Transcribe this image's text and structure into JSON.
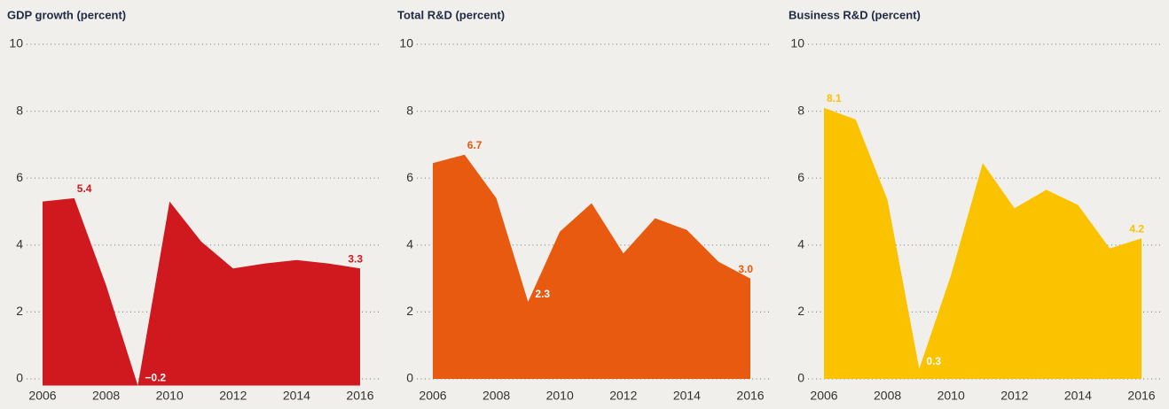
{
  "chart_data": [
    {
      "type": "area",
      "title": "GDP growth (percent)",
      "color": "#d0181f",
      "x": [
        2006,
        2007,
        2008,
        2009,
        2010,
        2011,
        2012,
        2013,
        2014,
        2015,
        2016
      ],
      "values": [
        5.3,
        5.4,
        2.8,
        -0.2,
        5.3,
        4.1,
        3.3,
        3.45,
        3.55,
        3.45,
        3.3
      ],
      "value_labels": [
        null,
        "5.4",
        null,
        "−0.2",
        null,
        null,
        null,
        null,
        null,
        null,
        "3.3"
      ],
      "xlim": [
        2006,
        2016
      ],
      "xticks": [
        2006,
        2008,
        2010,
        2012,
        2014,
        2016
      ],
      "ylim": [
        0,
        10
      ],
      "yticks": [
        0,
        2,
        4,
        6,
        8,
        10
      ],
      "grid": true
    },
    {
      "type": "area",
      "title": "Total R&D (percent)",
      "color": "#e85a0f",
      "x": [
        2006,
        2007,
        2008,
        2009,
        2010,
        2011,
        2012,
        2013,
        2014,
        2015,
        2016
      ],
      "values": [
        6.45,
        6.7,
        5.4,
        2.3,
        4.4,
        5.25,
        3.75,
        4.8,
        4.45,
        3.5,
        3.0
      ],
      "value_labels": [
        null,
        "6.7",
        null,
        "2.3",
        null,
        null,
        null,
        null,
        null,
        null,
        "3.0"
      ],
      "xlim": [
        2006,
        2016
      ],
      "xticks": [
        2006,
        2008,
        2010,
        2012,
        2014,
        2016
      ],
      "ylim": [
        0,
        10
      ],
      "yticks": [
        0,
        2,
        4,
        6,
        8,
        10
      ],
      "grid": true
    },
    {
      "type": "area",
      "title": "Business R&D (percent)",
      "color": "#fbc200",
      "x": [
        2006,
        2007,
        2008,
        2009,
        2010,
        2011,
        2012,
        2013,
        2014,
        2015,
        2016
      ],
      "values": [
        8.1,
        7.75,
        5.35,
        0.3,
        3.1,
        6.45,
        5.1,
        5.65,
        5.2,
        3.9,
        4.2
      ],
      "value_labels": [
        "8.1",
        null,
        null,
        "0.3",
        null,
        null,
        null,
        null,
        null,
        null,
        "4.2"
      ],
      "xlim": [
        2006,
        2016
      ],
      "xticks": [
        2006,
        2008,
        2010,
        2012,
        2014,
        2016
      ],
      "ylim": [
        0,
        10
      ],
      "yticks": [
        0,
        2,
        4,
        6,
        8,
        10
      ],
      "grid": true
    }
  ]
}
